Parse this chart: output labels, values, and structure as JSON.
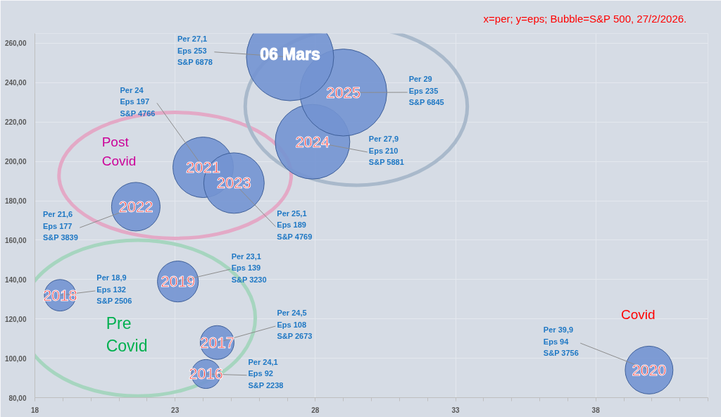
{
  "chart_data": {
    "type": "bubble",
    "title": "x=per; y=eps; Bubble=S&P 500, 27/2/2026.",
    "xlim": [
      18,
      42
    ],
    "xticks": [
      18,
      23,
      28,
      33,
      38
    ],
    "ylim": [
      80,
      265
    ],
    "yticks": [
      {
        "value": 80,
        "label": "80,00"
      },
      {
        "value": 100,
        "label": "100,00"
      },
      {
        "value": 120,
        "label": "120,00"
      },
      {
        "value": 140,
        "label": "140,00"
      },
      {
        "value": 160,
        "label": "160,00"
      },
      {
        "value": 180,
        "label": "180,00"
      },
      {
        "value": 200,
        "label": "200,00"
      },
      {
        "value": 220,
        "label": "220,00"
      },
      {
        "value": 240,
        "label": "240,00"
      },
      {
        "value": 260,
        "label": "260,00"
      }
    ],
    "grid": true,
    "series": [
      {
        "name": "2016",
        "color": "#7393d2",
        "x": [
          24.1
        ],
        "values": [
          92
        ],
        "sizes": [
          0.11
        ]
      },
      {
        "name": "2017",
        "color": "#7393d2",
        "x": [
          24.5
        ],
        "values": [
          108
        ],
        "sizes": [
          0.15
        ]
      },
      {
        "name": "2018",
        "color": "#7393d2",
        "x": [
          18.9
        ],
        "values": [
          132
        ],
        "sizes": [
          0.13
        ]
      },
      {
        "name": "2019",
        "color": "#7393d2",
        "x": [
          23.1
        ],
        "values": [
          139
        ],
        "sizes": [
          0.22
        ]
      },
      {
        "name": "2020",
        "color": "#7393d2",
        "x": [
          39.9
        ],
        "values": [
          94
        ],
        "sizes": [
          0.3
        ]
      },
      {
        "name": "2021",
        "color": "#7393d2",
        "x": [
          24
        ],
        "values": [
          197
        ],
        "sizes": [
          0.48
        ]
      },
      {
        "name": "2022",
        "color": "#7393d2",
        "x": [
          21.6
        ],
        "values": [
          177
        ],
        "sizes": [
          0.31
        ]
      },
      {
        "name": "2023",
        "color": "#7393d2",
        "x": [
          25.1
        ],
        "values": [
          189
        ],
        "sizes": [
          0.48
        ]
      },
      {
        "name": "2024",
        "color": "#7393d2",
        "x": [
          27.9
        ],
        "values": [
          210
        ],
        "sizes": [
          0.73
        ]
      },
      {
        "name": "2025",
        "color": "#7393d2",
        "x": [
          29
        ],
        "values": [
          235
        ],
        "sizes": [
          0.99
        ]
      },
      {
        "name": "06 Mars",
        "color": "#7393d2",
        "x": [
          27.1
        ],
        "values": [
          253
        ],
        "sizes": [
          1
        ]
      }
    ],
    "annotations": [
      {
        "text": "Per 24,1\nEps 92\nS&P 2238",
        "x": 24.1,
        "y": 92
      },
      {
        "text": "Per 24,5\nEps 108\nS&P 2673",
        "x": 24.5,
        "y": 108
      },
      {
        "text": "Per 18,9\nEps 132\nS&P 2506",
        "x": 18.9,
        "y": 132
      },
      {
        "text": "Per 23,1\nEps 139\nS&P 3230",
        "x": 23.1,
        "y": 139
      },
      {
        "text": "Per 39,9\nEps 94\nS&P 3756",
        "x": 39.9,
        "y": 94
      },
      {
        "text": "Per 24\nEps 197\nS&P 4766",
        "x": 24,
        "y": 197
      },
      {
        "text": "Per 21,6\nEps 177\nS&P 3839",
        "x": 21.6,
        "y": 177
      },
      {
        "text": "Per 25,1\nEps 189\nS&P 4769",
        "x": 25.1,
        "y": 189
      },
      {
        "text": "Per 27,9\nEps 210\nS&P 5881",
        "x": 27.9,
        "y": 210
      },
      {
        "text": "Per 29\nEps 235\nS&P 6845",
        "x": 29,
        "y": 235
      },
      {
        "text": "Per 27,1\nEps 253\nS&P 6878",
        "x": 27.1,
        "y": 253
      },
      "Post\nCovid",
      "Pre\nCovid",
      "Covid"
    ]
  }
}
